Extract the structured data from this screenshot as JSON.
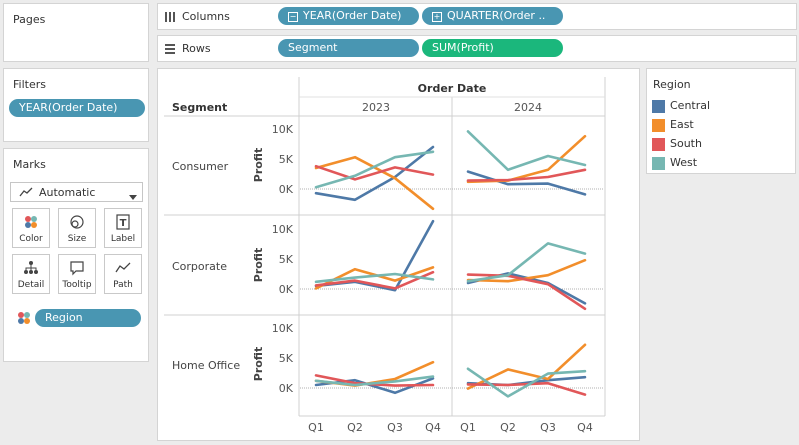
{
  "pages": {
    "title": "Pages"
  },
  "shelves": {
    "columns": {
      "label": "Columns",
      "pills": [
        "YEAR(Order Date)",
        "QUARTER(Order .."
      ]
    },
    "rows": {
      "label": "Rows",
      "pills": [
        "Segment",
        "SUM(Profit)"
      ]
    }
  },
  "filters": {
    "title": "Filters",
    "pills": [
      "YEAR(Order Date)"
    ]
  },
  "marks": {
    "title": "Marks",
    "mark_type": "Automatic",
    "buttons": [
      "Color",
      "Size",
      "Label",
      "Detail",
      "Tooltip",
      "Path"
    ],
    "color_pill": "Region"
  },
  "legend": {
    "title": "Region",
    "items": [
      {
        "label": "Central",
        "color": "#4e79a7"
      },
      {
        "label": "East",
        "color": "#f28e2b"
      },
      {
        "label": "South",
        "color": "#e15759"
      },
      {
        "label": "West",
        "color": "#76b7b2"
      }
    ]
  },
  "chart_data": {
    "type": "line",
    "title": "Order Date",
    "row_header": "Segment",
    "ylabel": "Profit",
    "ylim": [
      -3000,
      13000
    ],
    "y_ticks": [
      0,
      5000,
      10000
    ],
    "y_tick_labels": [
      "0K",
      "5K",
      "10K"
    ],
    "years": [
      "2023",
      "2024"
    ],
    "quarters": [
      "Q1",
      "Q2",
      "Q3",
      "Q4"
    ],
    "segments": [
      "Consumer",
      "Corporate",
      "Home Office"
    ],
    "series": [
      {
        "segment": "Consumer",
        "year": "2023",
        "region": "Central",
        "values": [
          -700,
          -1800,
          2000,
          7000
        ]
      },
      {
        "segment": "Consumer",
        "year": "2023",
        "region": "East",
        "values": [
          3500,
          5300,
          1800,
          -3300
        ]
      },
      {
        "segment": "Consumer",
        "year": "2023",
        "region": "South",
        "values": [
          3800,
          1600,
          3600,
          2400
        ]
      },
      {
        "segment": "Consumer",
        "year": "2023",
        "region": "West",
        "values": [
          300,
          2200,
          5300,
          6200
        ]
      },
      {
        "segment": "Consumer",
        "year": "2024",
        "region": "Central",
        "values": [
          2900,
          800,
          900,
          -900
        ]
      },
      {
        "segment": "Consumer",
        "year": "2024",
        "region": "East",
        "values": [
          1200,
          1400,
          3200,
          8800
        ]
      },
      {
        "segment": "Consumer",
        "year": "2024",
        "region": "South",
        "values": [
          1400,
          1500,
          2000,
          3200
        ]
      },
      {
        "segment": "Consumer",
        "year": "2024",
        "region": "West",
        "values": [
          9600,
          3200,
          5500,
          4000
        ]
      },
      {
        "segment": "Corporate",
        "year": "2023",
        "region": "Central",
        "values": [
          500,
          1200,
          -200,
          11300
        ]
      },
      {
        "segment": "Corporate",
        "year": "2023",
        "region": "East",
        "values": [
          100,
          3300,
          1400,
          3600
        ]
      },
      {
        "segment": "Corporate",
        "year": "2023",
        "region": "South",
        "values": [
          600,
          1400,
          100,
          2800
        ]
      },
      {
        "segment": "Corporate",
        "year": "2023",
        "region": "West",
        "values": [
          1200,
          1900,
          2500,
          1600
        ]
      },
      {
        "segment": "Corporate",
        "year": "2024",
        "region": "Central",
        "values": [
          1000,
          2600,
          1000,
          -2400
        ]
      },
      {
        "segment": "Corporate",
        "year": "2024",
        "region": "East",
        "values": [
          1500,
          1300,
          2300,
          4800
        ]
      },
      {
        "segment": "Corporate",
        "year": "2024",
        "region": "South",
        "values": [
          2400,
          2200,
          800,
          -3300
        ]
      },
      {
        "segment": "Corporate",
        "year": "2024",
        "region": "West",
        "values": [
          1300,
          2300,
          7600,
          5900
        ]
      },
      {
        "segment": "Home Office",
        "year": "2023",
        "region": "Central",
        "values": [
          500,
          1300,
          -800,
          1600
        ]
      },
      {
        "segment": "Home Office",
        "year": "2023",
        "region": "East",
        "values": [
          1200,
          400,
          1500,
          4300
        ]
      },
      {
        "segment": "Home Office",
        "year": "2023",
        "region": "South",
        "values": [
          2100,
          800,
          400,
          500
        ]
      },
      {
        "segment": "Home Office",
        "year": "2023",
        "region": "West",
        "values": [
          1200,
          500,
          1100,
          1900
        ]
      },
      {
        "segment": "Home Office",
        "year": "2024",
        "region": "Central",
        "values": [
          800,
          500,
          1300,
          1800
        ]
      },
      {
        "segment": "Home Office",
        "year": "2024",
        "region": "East",
        "values": [
          -100,
          3100,
          1500,
          7200
        ]
      },
      {
        "segment": "Home Office",
        "year": "2024",
        "region": "South",
        "values": [
          600,
          500,
          800,
          -1100
        ]
      },
      {
        "segment": "Home Office",
        "year": "2024",
        "region": "West",
        "values": [
          3200,
          -1400,
          2400,
          2800
        ]
      }
    ]
  }
}
